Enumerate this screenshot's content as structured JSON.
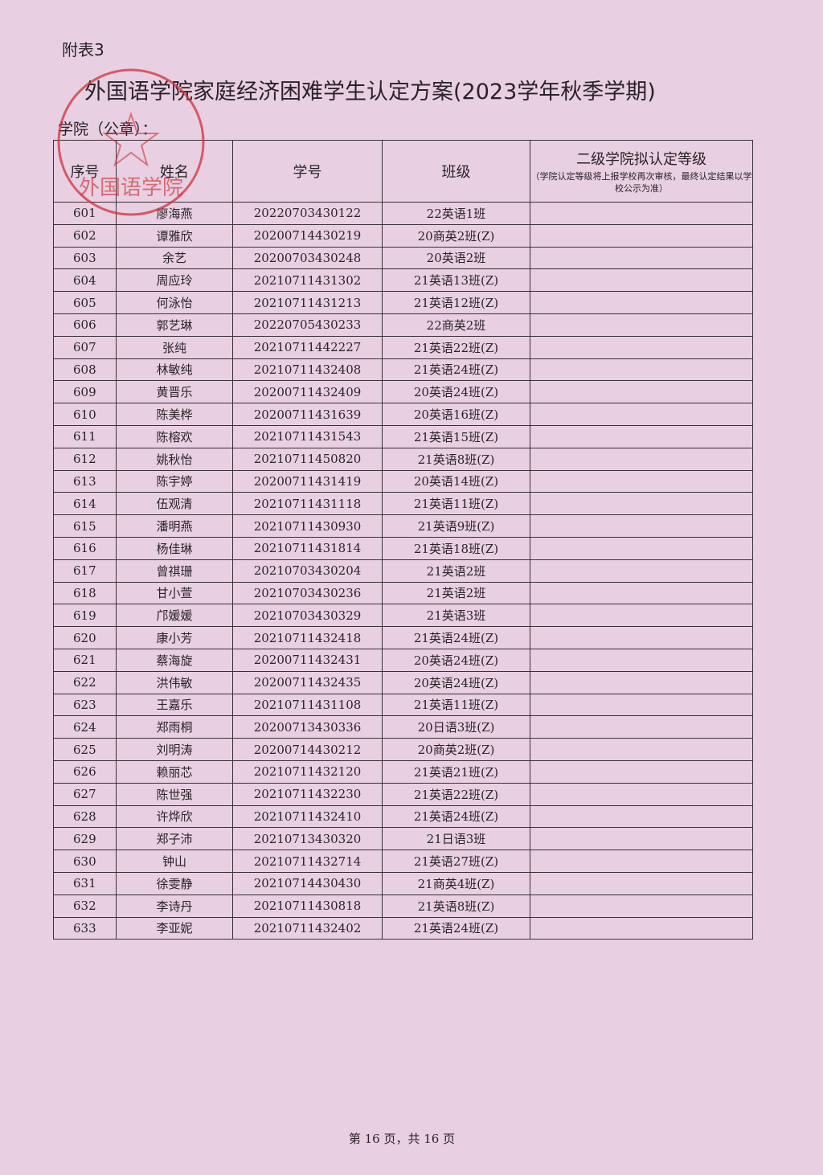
{
  "annex_label": "附表3",
  "title": "外国语学院家庭经济困难学生认定方案(2023学年秋季学期)",
  "seal_label": "学院（公章）：",
  "stamp": {
    "text": "外国语学院",
    "color": "#d0323a"
  },
  "table": {
    "headers": {
      "index": "序号",
      "name": "姓名",
      "student_id": "学号",
      "class": "班级",
      "level": "二级学院拟认定等级",
      "level_note": "（学院认定等级将上报学校再次审核，最终认定结果以学校公示为准）"
    },
    "rows": [
      [
        "601",
        "廖海燕",
        "20220703430122",
        "22英语1班",
        ""
      ],
      [
        "602",
        "谭雅欣",
        "20200714430219",
        "20商英2班(Z)",
        ""
      ],
      [
        "603",
        "余艺",
        "20200703430248",
        "20英语2班",
        ""
      ],
      [
        "604",
        "周应玲",
        "20210711431302",
        "21英语13班(Z)",
        ""
      ],
      [
        "605",
        "何泳怡",
        "20210711431213",
        "21英语12班(Z)",
        ""
      ],
      [
        "606",
        "郭艺琳",
        "20220705430233",
        "22商英2班",
        ""
      ],
      [
        "607",
        "张纯",
        "20210711442227",
        "21英语22班(Z)",
        ""
      ],
      [
        "608",
        "林敏纯",
        "20210711432408",
        "21英语24班(Z)",
        ""
      ],
      [
        "609",
        "黄晋乐",
        "20200711432409",
        "20英语24班(Z)",
        ""
      ],
      [
        "610",
        "陈美桦",
        "20200711431639",
        "20英语16班(Z)",
        ""
      ],
      [
        "611",
        "陈榕欢",
        "20210711431543",
        "21英语15班(Z)",
        ""
      ],
      [
        "612",
        "姚秋怡",
        "20210711450820",
        "21英语8班(Z)",
        ""
      ],
      [
        "613",
        "陈宇婷",
        "20200711431419",
        "20英语14班(Z)",
        ""
      ],
      [
        "614",
        "伍观清",
        "20210711431118",
        "21英语11班(Z)",
        ""
      ],
      [
        "615",
        "潘明燕",
        "20210711430930",
        "21英语9班(Z)",
        ""
      ],
      [
        "616",
        "杨佳琳",
        "20210711431814",
        "21英语18班(Z)",
        ""
      ],
      [
        "617",
        "曾祺珊",
        "20210703430204",
        "21英语2班",
        ""
      ],
      [
        "618",
        "甘小萱",
        "20210703430236",
        "21英语2班",
        ""
      ],
      [
        "619",
        "邝媛媛",
        "20210703430329",
        "21英语3班",
        ""
      ],
      [
        "620",
        "康小芳",
        "20210711432418",
        "21英语24班(Z)",
        ""
      ],
      [
        "621",
        "蔡海旋",
        "20200711432431",
        "20英语24班(Z)",
        ""
      ],
      [
        "622",
        "洪伟敏",
        "20200711432435",
        "20英语24班(Z)",
        ""
      ],
      [
        "623",
        "王嘉乐",
        "20210711431108",
        "21英语11班(Z)",
        ""
      ],
      [
        "624",
        "郑雨桐",
        "20200713430336",
        "20日语3班(Z)",
        ""
      ],
      [
        "625",
        "刘明涛",
        "20200714430212",
        "20商英2班(Z)",
        ""
      ],
      [
        "626",
        "赖丽芯",
        "20210711432120",
        "21英语21班(Z)",
        ""
      ],
      [
        "627",
        "陈世强",
        "20210711432230",
        "21英语22班(Z)",
        ""
      ],
      [
        "628",
        "许烨欣",
        "20210711432410",
        "21英语24班(Z)",
        ""
      ],
      [
        "629",
        "郑子沛",
        "20210713430320",
        "21日语3班",
        ""
      ],
      [
        "630",
        "钟山",
        "20210711432714",
        "21英语27班(Z)",
        ""
      ],
      [
        "631",
        "徐雯静",
        "20210714430430",
        "21商英4班(Z)",
        ""
      ],
      [
        "632",
        "李诗丹",
        "20210711430818",
        "21英语8班(Z)",
        ""
      ],
      [
        "633",
        "李亚妮",
        "20210711432402",
        "21英语24班(Z)",
        ""
      ]
    ]
  },
  "footer": "第 16 页，共 16 页"
}
